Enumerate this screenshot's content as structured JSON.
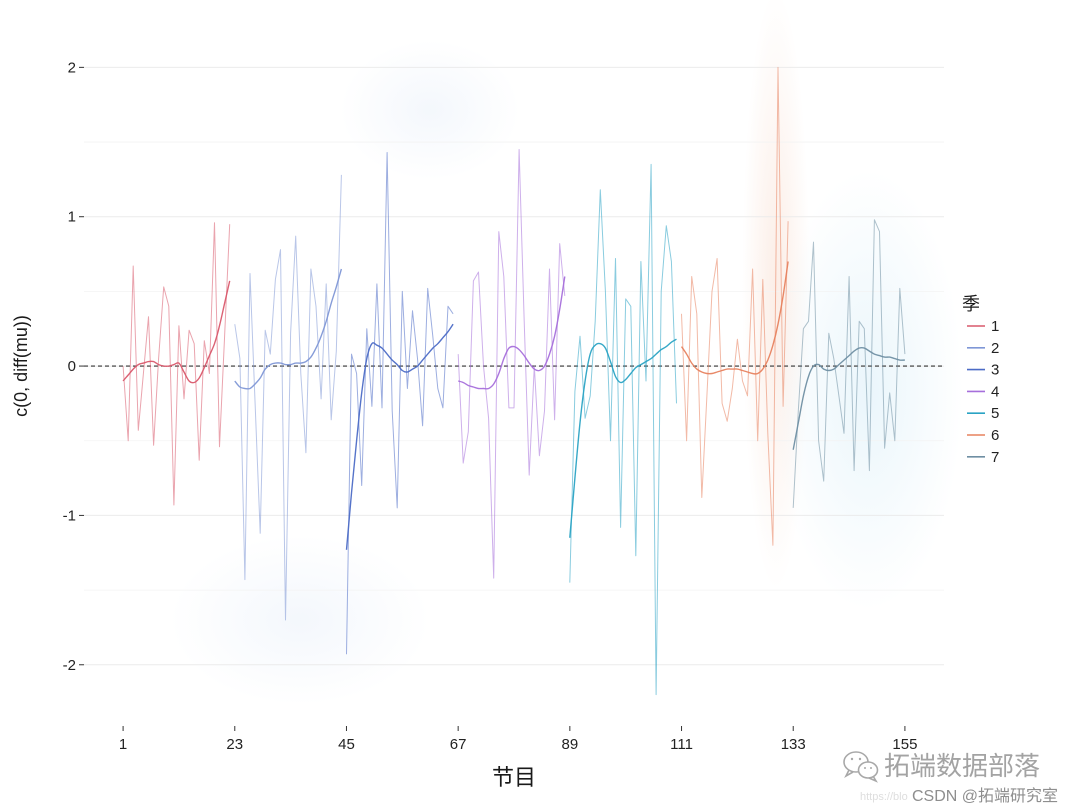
{
  "chart_data": {
    "type": "line",
    "xlabel": "节目",
    "ylabel": "c(0, diff(mu))",
    "xlim": [
      -6.7,
      162.7
    ],
    "ylim": [
      -2.41,
      2.21
    ],
    "x_ticks": [
      1,
      23,
      45,
      67,
      89,
      111,
      133,
      155
    ],
    "y_ticks": [
      -2,
      -1,
      0,
      1,
      2
    ],
    "grid": "horizontal",
    "reference_line": {
      "y": 0,
      "dashed": true,
      "color": "#333333"
    },
    "legend": {
      "title": "季",
      "position": "right"
    },
    "series": [
      {
        "name": "1",
        "color": "#D9596B",
        "x": [
          1,
          2,
          3,
          4,
          5,
          6,
          7,
          8,
          9,
          10,
          11,
          12,
          13,
          14,
          15,
          16,
          17,
          18,
          19,
          20,
          21,
          22
        ],
        "y": [
          0.0,
          -0.5,
          0.67,
          -0.43,
          -0.05,
          0.33,
          -0.53,
          0.05,
          0.53,
          0.4,
          -0.93,
          0.27,
          -0.22,
          0.24,
          0.15,
          -0.63,
          0.17,
          -0.05,
          0.96,
          -0.54,
          0.2,
          0.95
        ],
        "smoothed": [
          -0.1,
          -0.06,
          -0.02,
          0.01,
          0.02,
          0.03,
          0.03,
          0.01,
          0.0,
          0.0,
          0.01,
          0.02,
          -0.04,
          -0.1,
          -0.11,
          -0.08,
          -0.01,
          0.07,
          0.15,
          0.27,
          0.42,
          0.57
        ]
      },
      {
        "name": "2",
        "color": "#7F97D6",
        "x": [
          23,
          24,
          25,
          26,
          27,
          28,
          29,
          30,
          31,
          32,
          33,
          34,
          35,
          36,
          37,
          38,
          39,
          40,
          41,
          42,
          43,
          44
        ],
        "y": [
          0.28,
          0.05,
          -1.43,
          0.62,
          -0.25,
          -1.12,
          0.24,
          0.08,
          0.58,
          0.78,
          -1.7,
          0.22,
          0.87,
          -0.05,
          -0.58,
          0.65,
          0.4,
          -0.22,
          0.55,
          -0.36,
          0.1,
          1.28
        ],
        "smoothed": [
          -0.1,
          -0.14,
          -0.15,
          -0.15,
          -0.12,
          -0.08,
          -0.02,
          0.01,
          0.02,
          0.02,
          0.01,
          0.01,
          0.02,
          0.02,
          0.03,
          0.06,
          0.12,
          0.2,
          0.3,
          0.42,
          0.53,
          0.65
        ]
      },
      {
        "name": "3",
        "color": "#4C6BC6",
        "x": [
          45,
          46,
          47,
          48,
          49,
          50,
          51,
          52,
          53,
          54,
          55,
          56,
          57,
          58,
          59,
          60,
          61,
          62,
          63,
          64,
          65,
          66
        ],
        "y": [
          -1.93,
          0.08,
          -0.05,
          -0.8,
          0.25,
          -0.27,
          0.55,
          -0.28,
          1.43,
          -0.3,
          -0.95,
          0.5,
          -0.15,
          0.37,
          0.05,
          -0.4,
          0.52,
          0.2,
          -0.15,
          -0.28,
          0.4,
          0.35
        ],
        "smoothed": [
          -1.23,
          -0.85,
          -0.5,
          -0.18,
          0.05,
          0.15,
          0.14,
          0.12,
          0.08,
          0.04,
          0.01,
          -0.03,
          -0.04,
          -0.02,
          0.0,
          0.04,
          0.08,
          0.12,
          0.15,
          0.19,
          0.23,
          0.28
        ]
      },
      {
        "name": "4",
        "color": "#A66FDB",
        "x": [
          67,
          68,
          69,
          70,
          71,
          72,
          73,
          74,
          75,
          76,
          77,
          78,
          79,
          80,
          81,
          82,
          83,
          84,
          85,
          86,
          87,
          88
        ],
        "y": [
          0.08,
          -0.65,
          -0.44,
          0.57,
          0.63,
          0.0,
          -0.35,
          -1.42,
          0.9,
          0.6,
          -0.28,
          -0.28,
          1.45,
          0.3,
          -0.73,
          0.0,
          -0.6,
          -0.3,
          0.65,
          -0.36,
          0.82,
          0.47
        ],
        "smoothed": [
          -0.1,
          -0.11,
          -0.13,
          -0.14,
          -0.15,
          -0.15,
          -0.15,
          -0.12,
          -0.05,
          0.05,
          0.12,
          0.13,
          0.11,
          0.07,
          0.02,
          -0.02,
          -0.03,
          0.0,
          0.08,
          0.2,
          0.38,
          0.6
        ]
      },
      {
        "name": "5",
        "color": "#2AA3C4",
        "x": [
          89,
          90,
          91,
          92,
          93,
          94,
          95,
          96,
          97,
          98,
          99,
          100,
          101,
          102,
          103,
          104,
          105,
          106,
          107,
          108,
          109,
          110
        ],
        "y": [
          -1.45,
          -0.17,
          0.2,
          -0.35,
          -0.2,
          0.3,
          1.18,
          0.5,
          -0.5,
          0.72,
          -1.08,
          0.45,
          0.4,
          -1.27,
          0.7,
          -0.1,
          1.35,
          -2.2,
          0.5,
          0.94,
          0.7,
          -0.25
        ],
        "smoothed": [
          -1.15,
          -0.75,
          -0.38,
          -0.1,
          0.08,
          0.14,
          0.15,
          0.12,
          0.03,
          -0.07,
          -0.11,
          -0.09,
          -0.05,
          -0.01,
          0.01,
          0.03,
          0.05,
          0.08,
          0.11,
          0.13,
          0.16,
          0.18
        ]
      },
      {
        "name": "6",
        "color": "#E7825F",
        "x": [
          111,
          112,
          113,
          114,
          115,
          116,
          117,
          118,
          119,
          120,
          121,
          122,
          123,
          124,
          125,
          126,
          127,
          128,
          129,
          130,
          131,
          132
        ],
        "y": [
          0.35,
          -0.5,
          0.6,
          0.35,
          -0.88,
          -0.2,
          0.5,
          0.72,
          -0.25,
          -0.37,
          -0.15,
          0.18,
          -0.1,
          -0.2,
          0.65,
          -0.5,
          0.58,
          -0.45,
          -1.2,
          2.0,
          -0.27,
          0.97
        ],
        "smoothed": [
          0.13,
          0.08,
          0.02,
          -0.02,
          -0.04,
          -0.05,
          -0.05,
          -0.04,
          -0.03,
          -0.02,
          -0.02,
          -0.02,
          -0.03,
          -0.04,
          -0.05,
          -0.05,
          -0.02,
          0.04,
          0.14,
          0.28,
          0.47,
          0.7
        ]
      },
      {
        "name": "7",
        "color": "#6F8FA3",
        "x": [
          133,
          134,
          135,
          136,
          137,
          138,
          139,
          140,
          141,
          142,
          143,
          144,
          145,
          146,
          147,
          148,
          149,
          150,
          151,
          152,
          153,
          154,
          155
        ],
        "y": [
          -0.95,
          -0.3,
          0.25,
          0.3,
          0.83,
          -0.5,
          -0.77,
          0.22,
          0.05,
          -0.2,
          -0.45,
          0.6,
          -0.7,
          0.3,
          0.25,
          -0.7,
          0.98,
          0.9,
          -0.55,
          -0.18,
          -0.5,
          0.52,
          0.08
        ],
        "smoothed": [
          -0.56,
          -0.38,
          -0.2,
          -0.07,
          0.0,
          0.01,
          -0.02,
          -0.03,
          -0.02,
          0.01,
          0.04,
          0.07,
          0.1,
          0.12,
          0.12,
          0.1,
          0.08,
          0.07,
          0.06,
          0.06,
          0.05,
          0.04,
          0.04
        ]
      }
    ]
  },
  "watermark": {
    "icon": "wechat-icon",
    "brand": "拓端数据部落",
    "url_fragment": "https://blo",
    "csdn": "CSDN @拓端研究室"
  }
}
